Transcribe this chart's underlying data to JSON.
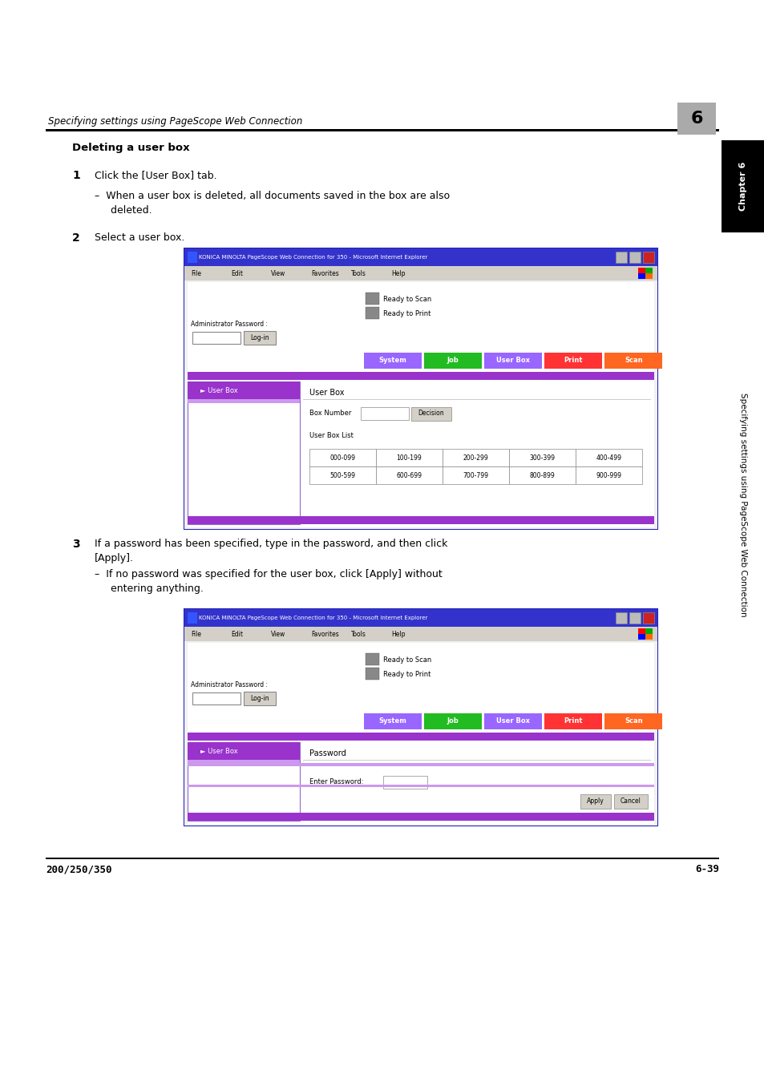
{
  "page_width": 9.54,
  "page_height": 13.5,
  "bg_color": "#ffffff",
  "header_text": "Specifying settings using PageScope Web Connection",
  "header_chapter_num": "6",
  "footer_left": "200/250/350",
  "footer_right": "6-39",
  "section_title": "Deleting a user box",
  "step1_num": "1",
  "step1_text": "Click the [User Box] tab.",
  "step1_sub": "When a user box is deleted, all documents saved in the box are also\ndeleted.",
  "step2_num": "2",
  "step2_text": "Select a user box.",
  "step3_num": "3",
  "step3_text": "If a password has been specified, type in the password, and then click\n[Apply].",
  "step3_sub": "If no password was specified for the user box, click [Apply] without\nentering anything.",
  "sidebar_text": "Specifying settings using PageScope Web Connection",
  "browser_title": "KONICA MINOLTA PageScope Web Connection for 350 - Microsoft Internet Explorer",
  "tab_system": "System",
  "tab_job": "Job",
  "tab_userbox": "User Box",
  "tab_print": "Print",
  "tab_scan": "Scan",
  "nav_items": [
    "File",
    "Edit",
    "View",
    "Favorites",
    "Tools",
    "Help"
  ],
  "admin_label": "Administrator Password :",
  "login_btn": "Log-in",
  "ready_scan": "Ready to Scan",
  "ready_print": "Ready to Print",
  "userbox_nav": "User Box",
  "userbox_title": "User Box",
  "box_number_label": "Box Number",
  "decision_btn": "Decision",
  "userbox_list_label": "User Box List",
  "grid_rows": [
    [
      "000-099",
      "100-199",
      "200-299",
      "300-399",
      "400-499"
    ],
    [
      "500-599",
      "600-699",
      "700-799",
      "800-899",
      "900-999"
    ]
  ],
  "password_title": "Password",
  "enter_pw_label": "Enter Password:",
  "apply_btn": "Apply",
  "cancel_btn": "Cancel"
}
